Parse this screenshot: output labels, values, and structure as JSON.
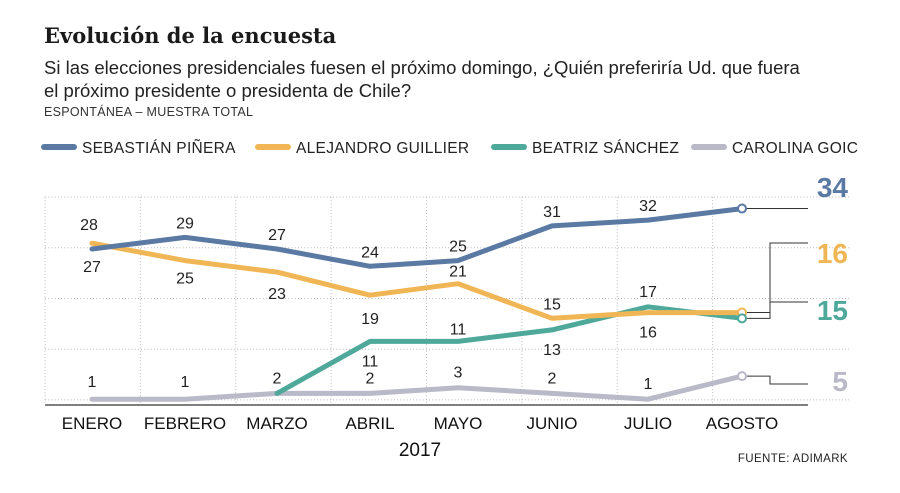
{
  "header": {
    "title": "Evolución de la encuesta",
    "subtitle_line1": "Si las elecciones presidenciales fuesen el próximo domingo, ¿Quién preferiría Ud. que fuera",
    "subtitle_line2": "el próximo presidente o presidenta de Chile?",
    "note": "ESPONTÁNEA – MUESTRA TOTAL"
  },
  "source": "FUENTE: ADIMARK",
  "chart_data": {
    "type": "line",
    "categories": [
      "ENERO",
      "FEBRERO",
      "MARZO",
      "ABRIL",
      "MAYO",
      "JUNIO",
      "JULIO",
      "AGOSTO"
    ],
    "xlabel": "2017",
    "ylabel": "",
    "ylim": [
      0,
      36
    ],
    "grid": true,
    "legend_position": "top",
    "series": [
      {
        "name": "SEBASTIÁN PIÑERA",
        "color": "#5a7aa3",
        "values": [
          27,
          29,
          27,
          24,
          25,
          31,
          32,
          34
        ],
        "labels": [
          "27",
          "29",
          "27",
          "24",
          "25",
          "31",
          "32",
          ""
        ],
        "end_label": "34"
      },
      {
        "name": "ALEJANDRO GUILLIER",
        "color": "#f0b655",
        "values": [
          28,
          25,
          23,
          19,
          21,
          15,
          16,
          16
        ],
        "labels": [
          "28",
          "25",
          "23",
          "19",
          "21",
          "15",
          "16",
          ""
        ],
        "end_label": "16"
      },
      {
        "name": "BEATRIZ SÁNCHEZ",
        "color": "#4ea99b",
        "values": [
          null,
          null,
          2,
          11,
          11,
          13,
          17,
          15
        ],
        "labels": [
          "",
          "",
          "",
          "11",
          "11",
          "13",
          "17",
          ""
        ],
        "end_label": "15"
      },
      {
        "name": "CAROLINA GOIC",
        "color": "#b9b9c8",
        "values": [
          1,
          1,
          2,
          2,
          3,
          2,
          1,
          5
        ],
        "labels": [
          "1",
          "1",
          "2",
          "2",
          "3",
          "2",
          "1",
          ""
        ],
        "end_label": "5"
      }
    ]
  }
}
